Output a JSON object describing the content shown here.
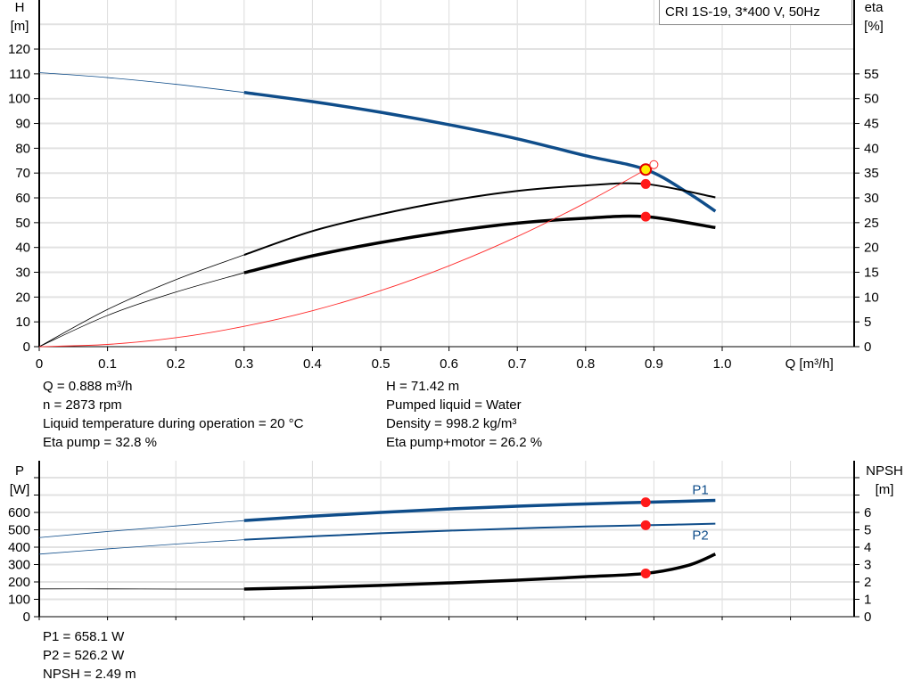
{
  "chart_data": [
    {
      "type": "line",
      "title": "CRI 1S-19, 3*400 V, 50Hz",
      "xlabel": "Q [m³/h]",
      "ylabel_left": [
        "H",
        "[m]"
      ],
      "ylabel_right": [
        "eta",
        "[%]"
      ],
      "xlim": [
        0,
        1.2
      ],
      "ylim_left": [
        0,
        130
      ],
      "ylim_right": [
        0,
        65
      ],
      "grid": true,
      "x_ticks": [
        "0",
        "0.1",
        "0.2",
        "0.3",
        "0.4",
        "0.5",
        "0.6",
        "0.7",
        "0.8",
        "0.9",
        "1.0"
      ],
      "left_ticks": [
        "0",
        "10",
        "20",
        "30",
        "40",
        "50",
        "60",
        "70",
        "80",
        "90",
        "100",
        "110",
        "120"
      ],
      "right_ticks": [
        "0",
        "5",
        "10",
        "15",
        "20",
        "25",
        "30",
        "35",
        "40",
        "45",
        "50",
        "55"
      ],
      "operating_range": [
        0.29,
        0.99
      ],
      "series": [
        {
          "key": "H",
          "axis": "left",
          "color": "#0f4d8a",
          "x": [
            0,
            0.1,
            0.2,
            0.3,
            0.4,
            0.5,
            0.6,
            0.7,
            0.8,
            0.888,
            0.95,
            0.99
          ],
          "y": [
            110.5,
            108.5,
            105.8,
            102.5,
            98.8,
            94.5,
            89.5,
            83.8,
            77.0,
            71.42,
            62.0,
            54.6
          ]
        },
        {
          "key": "eta_pump",
          "axis": "right",
          "color": "#000000",
          "x": [
            0,
            0.1,
            0.2,
            0.3,
            0.4,
            0.5,
            0.6,
            0.7,
            0.8,
            0.888,
            0.99
          ],
          "y": [
            0,
            7.5,
            13.5,
            18.5,
            23.3,
            26.7,
            29.4,
            31.4,
            32.5,
            32.8,
            30.1
          ]
        },
        {
          "key": "eta_pump_motor",
          "axis": "right",
          "color": "#000000",
          "x": [
            0,
            0.1,
            0.2,
            0.3,
            0.4,
            0.5,
            0.6,
            0.7,
            0.8,
            0.888,
            0.99
          ],
          "y": [
            0,
            6.3,
            11.0,
            14.9,
            18.3,
            21.0,
            23.2,
            24.9,
            25.9,
            26.2,
            24.0
          ]
        },
        {
          "key": "system_curve",
          "axis": "left",
          "color": "#ff2a2a",
          "x": [
            0,
            0.1,
            0.2,
            0.3,
            0.4,
            0.5,
            0.6,
            0.7,
            0.8,
            0.888,
            0.9
          ],
          "y": [
            0,
            0.9,
            3.6,
            8.2,
            14.5,
            22.6,
            32.6,
            44.4,
            58.0,
            71.42,
            73.4
          ]
        }
      ],
      "duty_points": [
        {
          "x": 0.888,
          "y": 71.42,
          "axis": "left",
          "style": "yellow"
        },
        {
          "x": 0.888,
          "y": 32.8,
          "axis": "right",
          "style": "red"
        },
        {
          "x": 0.888,
          "y": 26.2,
          "axis": "right",
          "style": "red"
        },
        {
          "x": 0.9,
          "y": 73.4,
          "axis": "left",
          "style": "open"
        }
      ]
    },
    {
      "type": "line",
      "ylabel_left": [
        "P",
        "[W]"
      ],
      "ylabel_right": [
        "NPSH",
        "[m]"
      ],
      "xlim": [
        0,
        1.2
      ],
      "ylim_left": [
        0,
        900
      ],
      "ylim_right": [
        0,
        9
      ],
      "grid": true,
      "left_ticks": [
        "0",
        "100",
        "200",
        "300",
        "400",
        "500",
        "600",
        "",
        ""
      ],
      "right_ticks": [
        "0",
        "1",
        "2",
        "3",
        "4",
        "5",
        "6",
        "",
        ""
      ],
      "series": [
        {
          "key": "P1",
          "name": "P1",
          "axis": "left",
          "color": "#0f4d8a",
          "x": [
            0,
            0.1,
            0.2,
            0.3,
            0.4,
            0.5,
            0.6,
            0.7,
            0.8,
            0.888,
            0.99
          ],
          "y": [
            455,
            490,
            522,
            553,
            578,
            600,
            620,
            636,
            649,
            658.1,
            669
          ]
        },
        {
          "key": "P2",
          "name": "P2",
          "axis": "left",
          "color": "#0f4d8a",
          "x": [
            0,
            0.1,
            0.2,
            0.3,
            0.4,
            0.5,
            0.6,
            0.7,
            0.8,
            0.888,
            0.99
          ],
          "y": [
            360,
            390,
            418,
            443,
            462,
            480,
            495,
            508,
            519,
            526.2,
            535
          ]
        },
        {
          "key": "NPSH",
          "axis": "right",
          "color": "#000000",
          "x": [
            0,
            0.1,
            0.2,
            0.3,
            0.4,
            0.5,
            0.6,
            0.7,
            0.8,
            0.888,
            0.95,
            0.99
          ],
          "y": [
            1.6,
            1.6,
            1.59,
            1.59,
            1.68,
            1.8,
            1.94,
            2.1,
            2.3,
            2.49,
            2.95,
            3.6
          ]
        }
      ],
      "duty_points": [
        {
          "x": 0.888,
          "y": 658.1,
          "axis": "left",
          "style": "red"
        },
        {
          "x": 0.888,
          "y": 526.2,
          "axis": "left",
          "style": "red"
        },
        {
          "x": 0.888,
          "y": 2.49,
          "axis": "right",
          "style": "red"
        }
      ]
    }
  ],
  "info_top": {
    "left": [
      "Q = 0.888 m³/h",
      "n = 2873 rpm",
      "Liquid temperature during operation = 20 °C",
      "Eta pump = 32.8 %"
    ],
    "right": [
      "H = 71.42 m",
      "Pumped liquid = Water",
      "Density = 998.2 kg/m³",
      "Eta pump+motor = 26.2 %"
    ]
  },
  "info_bottom": [
    "P1 = 658.1 W",
    "P2 = 526.2 W",
    "NPSH = 2.49 m"
  ]
}
